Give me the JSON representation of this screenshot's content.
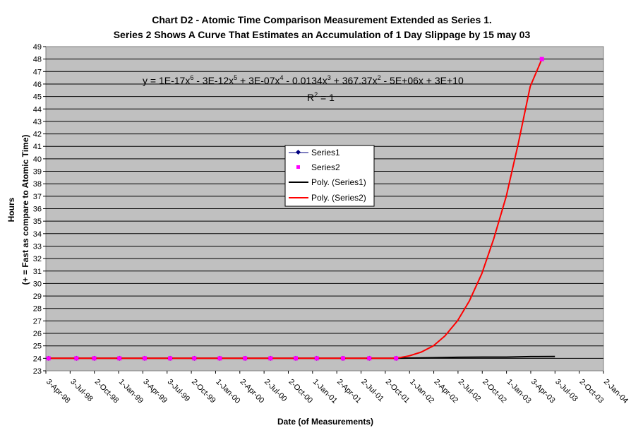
{
  "chart_data": {
    "type": "line",
    "title": "Chart D2 - Atomic Time Comparison Measurement Extended as Series 1.",
    "subtitle": "Series 2 Shows A Curve That Estimates an Accumulation of 1 Day Slippage by 15 may 03",
    "xlabel": "Date (of Measurements)",
    "ylabel": "Hours",
    "ylabel2": "(+ = Fast as compare to Atomic Time)",
    "ylim": [
      23,
      49
    ],
    "yticks": [
      "23",
      "24",
      "25",
      "26",
      "27",
      "28",
      "29",
      "30",
      "31",
      "32",
      "33",
      "34",
      "35",
      "36",
      "37",
      "38",
      "39",
      "40",
      "41",
      "42",
      "43",
      "44",
      "45",
      "46",
      "47",
      "48",
      "49"
    ],
    "xlim": [
      "1998-04-03",
      "2004-01-02"
    ],
    "xticks": [
      "3-Apr-98",
      "3-Jul-98",
      "2-Oct-98",
      "1-Jan-99",
      "3-Apr-99",
      "3-Jul-99",
      "2-Oct-99",
      "1-Jan-00",
      "2-Apr-00",
      "2-Jul-00",
      "2-Oct-00",
      "1-Jan-01",
      "2-Apr-01",
      "2-Jul-01",
      "2-Oct-01",
      "1-Jan-02",
      "2-Apr-02",
      "2-Jul-02",
      "2-Oct-02",
      "1-Jan-03",
      "3-Apr-03",
      "3-Jul-03",
      "2-Oct-03",
      "2-Jan-04"
    ],
    "grid": true,
    "plot_bg": "#c0c0c0",
    "legend_position": "center",
    "legend": [
      "Series1",
      "Series2",
      "Poly. (Series1)",
      "Poly. (Series2)"
    ],
    "series": [
      {
        "name": "Series1",
        "color": "#000080",
        "marker": "diamond",
        "x": [
          "1998-04-13",
          "1998-07-27",
          "1998-10-02",
          "1999-01-05",
          "1999-04-10",
          "1999-07-15",
          "1999-10-14",
          "2000-01-18",
          "2000-04-22",
          "2000-07-27",
          "2000-10-30",
          "2001-01-17",
          "2001-04-26",
          "2001-08-03",
          "2001-11-12"
        ],
        "y": [
          24,
          24,
          24,
          24,
          24,
          24,
          24,
          24,
          24,
          24,
          24,
          24,
          24,
          24,
          24
        ]
      },
      {
        "name": "Series2",
        "color": "#ff00ff",
        "marker": "square",
        "x": [
          "1998-04-13",
          "1998-07-27",
          "1998-10-02",
          "1999-01-05",
          "1999-04-10",
          "1999-07-15",
          "1999-10-14",
          "2000-01-18",
          "2000-04-22",
          "2000-07-27",
          "2000-10-30",
          "2001-01-17",
          "2001-04-26",
          "2001-08-03",
          "2001-11-12",
          "2003-05-15"
        ],
        "y": [
          24,
          24,
          24,
          24,
          24,
          24,
          24,
          24,
          24,
          24,
          24,
          24,
          24,
          24,
          24,
          48
        ]
      }
    ],
    "trendlines": [
      {
        "name": "Poly. (Series1)",
        "color": "#000000",
        "x": [
          "1998-04-13",
          "2001-11-12",
          "2002-04-02",
          "2002-07-02",
          "2002-10-02",
          "2003-01-01",
          "2003-04-03",
          "2003-07-03"
        ],
        "y": [
          24.0,
          24.0,
          24.05,
          24.08,
          24.1,
          24.1,
          24.14,
          24.15
        ]
      },
      {
        "name": "Poly. (Series2)",
        "color": "#ff0000",
        "x": [
          "1998-04-13",
          "2001-11-12",
          "2002-01-01",
          "2002-02-15",
          "2002-04-01",
          "2002-05-15",
          "2002-07-01",
          "2002-08-15",
          "2002-10-01",
          "2002-11-15",
          "2003-01-01",
          "2003-02-15",
          "2003-04-01",
          "2003-05-15"
        ],
        "y": [
          24.0,
          24.0,
          24.2,
          24.5,
          25.0,
          25.8,
          27.0,
          28.6,
          30.8,
          33.6,
          37.0,
          41.2,
          45.8,
          48.0
        ]
      }
    ],
    "annotations": {
      "equation_prefix": "y = 1E-17x",
      "eq_exp1": "6",
      "eq_t2": " - 3E-12x",
      "eq_exp2": "5",
      "eq_t3": " + 3E-07x",
      "eq_exp3": "4",
      "eq_t4": " - 0.0134x",
      "eq_exp4": "3",
      "eq_t5": " + 367.37x",
      "eq_exp5": "2",
      "eq_t6": " - 5E+06x + 3E+10",
      "r2_label": "R",
      "r2_exp": "2",
      "r2_value": " = 1"
    }
  }
}
